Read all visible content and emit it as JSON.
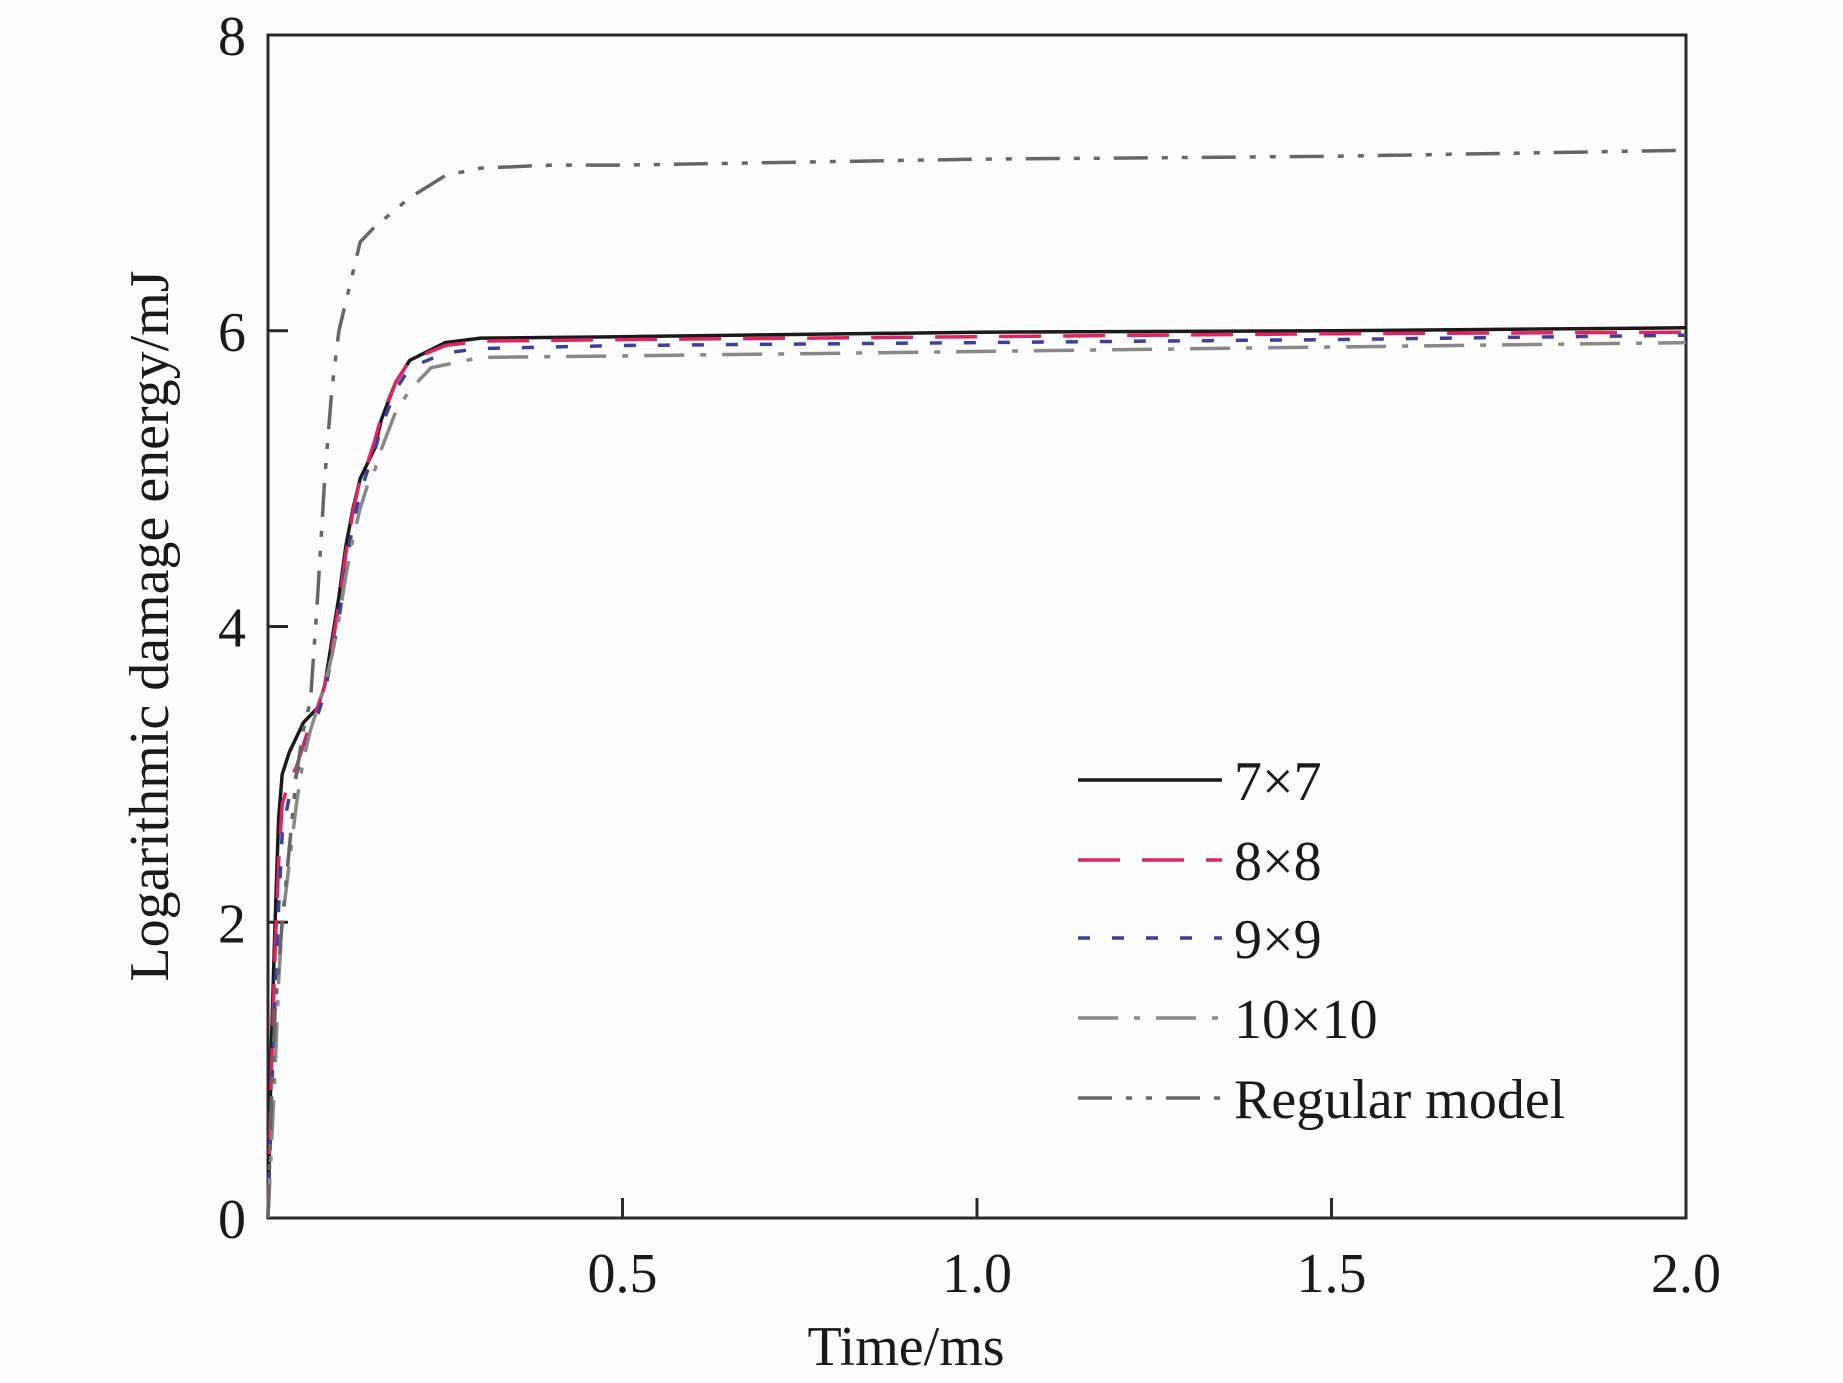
{
  "chart_data": {
    "type": "line",
    "title": "",
    "xlabel": "Time/ms",
    "ylabel": "Logarithmic damage energy/mJ",
    "xlim": [
      0,
      2.0
    ],
    "ylim": [
      0,
      8
    ],
    "x_ticks": [
      0.5,
      1.0,
      1.5,
      2.0
    ],
    "x_tick_labels": [
      "0.5",
      "1.0",
      "1.5",
      "2.0"
    ],
    "y_ticks": [
      0,
      2,
      4,
      6,
      8
    ],
    "y_tick_labels": [
      "0",
      "2",
      "4",
      "6",
      "8"
    ],
    "grid": false,
    "legend": "bottom-right",
    "series": [
      {
        "name": "7×7",
        "color": "#1a1a1a",
        "dash": "solid",
        "points": [
          [
            0,
            0
          ],
          [
            0.005,
            1.2
          ],
          [
            0.01,
            2.0
          ],
          [
            0.015,
            2.7
          ],
          [
            0.02,
            3.0
          ],
          [
            0.03,
            3.15
          ],
          [
            0.04,
            3.25
          ],
          [
            0.05,
            3.35
          ],
          [
            0.06,
            3.4
          ],
          [
            0.07,
            3.45
          ],
          [
            0.08,
            3.6
          ],
          [
            0.09,
            3.9
          ],
          [
            0.1,
            4.2
          ],
          [
            0.11,
            4.55
          ],
          [
            0.12,
            4.8
          ],
          [
            0.13,
            5.0
          ],
          [
            0.14,
            5.1
          ],
          [
            0.15,
            5.2
          ],
          [
            0.16,
            5.4
          ],
          [
            0.18,
            5.65
          ],
          [
            0.2,
            5.8
          ],
          [
            0.25,
            5.92
          ],
          [
            0.3,
            5.95
          ],
          [
            0.5,
            5.96
          ],
          [
            1.0,
            5.99
          ],
          [
            1.5,
            6.0
          ],
          [
            2.0,
            6.02
          ]
        ]
      },
      {
        "name": "8×8",
        "color": "#e0245e",
        "dash": "long-dash",
        "points": [
          [
            0,
            0
          ],
          [
            0.005,
            1.0
          ],
          [
            0.01,
            1.8
          ],
          [
            0.015,
            2.4
          ],
          [
            0.02,
            2.8
          ],
          [
            0.03,
            2.95
          ],
          [
            0.04,
            3.05
          ],
          [
            0.05,
            3.2
          ],
          [
            0.06,
            3.35
          ],
          [
            0.07,
            3.45
          ],
          [
            0.08,
            3.6
          ],
          [
            0.09,
            3.85
          ],
          [
            0.1,
            4.15
          ],
          [
            0.11,
            4.5
          ],
          [
            0.12,
            4.78
          ],
          [
            0.13,
            5.0
          ],
          [
            0.14,
            5.1
          ],
          [
            0.15,
            5.25
          ],
          [
            0.16,
            5.42
          ],
          [
            0.18,
            5.65
          ],
          [
            0.2,
            5.8
          ],
          [
            0.25,
            5.9
          ],
          [
            0.3,
            5.93
          ],
          [
            0.5,
            5.94
          ],
          [
            1.0,
            5.96
          ],
          [
            1.5,
            5.98
          ],
          [
            2.0,
            5.99
          ]
        ]
      },
      {
        "name": "9×9",
        "color": "#3a3fa0",
        "dash": "short-dash",
        "points": [
          [
            0,
            0
          ],
          [
            0.005,
            0.8
          ],
          [
            0.01,
            1.5
          ],
          [
            0.015,
            2.1
          ],
          [
            0.02,
            2.6
          ],
          [
            0.03,
            2.85
          ],
          [
            0.04,
            3.0
          ],
          [
            0.05,
            3.15
          ],
          [
            0.06,
            3.3
          ],
          [
            0.07,
            3.4
          ],
          [
            0.08,
            3.55
          ],
          [
            0.09,
            3.8
          ],
          [
            0.1,
            4.05
          ],
          [
            0.11,
            4.4
          ],
          [
            0.12,
            4.7
          ],
          [
            0.13,
            4.9
          ],
          [
            0.14,
            5.05
          ],
          [
            0.15,
            5.18
          ],
          [
            0.16,
            5.35
          ],
          [
            0.18,
            5.6
          ],
          [
            0.2,
            5.75
          ],
          [
            0.25,
            5.85
          ],
          [
            0.3,
            5.88
          ],
          [
            0.5,
            5.9
          ],
          [
            1.0,
            5.92
          ],
          [
            1.5,
            5.94
          ],
          [
            2.0,
            5.97
          ]
        ]
      },
      {
        "name": "10×10",
        "color": "#888888",
        "dash": "dash-dot",
        "points": [
          [
            0,
            0
          ],
          [
            0.005,
            0.5
          ],
          [
            0.01,
            1.0
          ],
          [
            0.015,
            1.6
          ],
          [
            0.02,
            2.0
          ],
          [
            0.03,
            2.4
          ],
          [
            0.04,
            2.8
          ],
          [
            0.05,
            3.1
          ],
          [
            0.06,
            3.3
          ],
          [
            0.07,
            3.45
          ],
          [
            0.08,
            3.6
          ],
          [
            0.09,
            3.8
          ],
          [
            0.1,
            4.05
          ],
          [
            0.11,
            4.35
          ],
          [
            0.12,
            4.6
          ],
          [
            0.13,
            4.8
          ],
          [
            0.14,
            4.95
          ],
          [
            0.15,
            5.05
          ],
          [
            0.16,
            5.2
          ],
          [
            0.18,
            5.45
          ],
          [
            0.2,
            5.6
          ],
          [
            0.23,
            5.75
          ],
          [
            0.3,
            5.82
          ],
          [
            0.5,
            5.83
          ],
          [
            1.0,
            5.86
          ],
          [
            1.5,
            5.89
          ],
          [
            2.0,
            5.92
          ]
        ]
      },
      {
        "name": "Regular model",
        "color": "#666666",
        "dash": "dash-dot-dot",
        "points": [
          [
            0,
            0
          ],
          [
            0.005,
            0.8
          ],
          [
            0.01,
            1.4
          ],
          [
            0.02,
            2.0
          ],
          [
            0.03,
            2.5
          ],
          [
            0.04,
            3.0
          ],
          [
            0.05,
            3.3
          ],
          [
            0.06,
            3.5
          ],
          [
            0.07,
            4.2
          ],
          [
            0.08,
            5.0
          ],
          [
            0.09,
            5.6
          ],
          [
            0.1,
            6.0
          ],
          [
            0.11,
            6.2
          ],
          [
            0.12,
            6.4
          ],
          [
            0.13,
            6.6
          ],
          [
            0.15,
            6.7
          ],
          [
            0.2,
            6.9
          ],
          [
            0.25,
            7.05
          ],
          [
            0.3,
            7.1
          ],
          [
            0.4,
            7.12
          ],
          [
            0.5,
            7.12
          ],
          [
            1.0,
            7.16
          ],
          [
            1.5,
            7.18
          ],
          [
            2.0,
            7.22
          ]
        ]
      }
    ]
  }
}
